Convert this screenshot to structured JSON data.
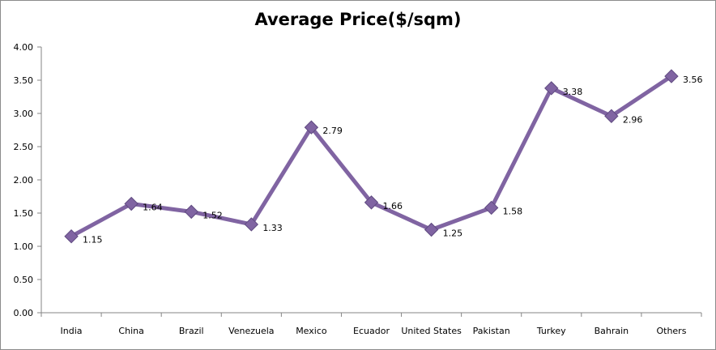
{
  "chart_data": {
    "type": "line",
    "title": "Average Price($/sqm)",
    "categories": [
      "India",
      "China",
      "Brazil",
      "Venezuela",
      "Mexico",
      "Ecuador",
      "United States",
      "Pakistan",
      "Turkey",
      "Bahrain",
      "Others"
    ],
    "series": [
      {
        "values": [
          1.15,
          1.64,
          1.52,
          1.33,
          2.79,
          1.66,
          1.25,
          1.58,
          3.38,
          2.96,
          3.56
        ]
      }
    ],
    "ylim": [
      0,
      4
    ],
    "yticks": [
      "0.00",
      "0.50",
      "1.00",
      "1.50",
      "2.00",
      "2.50",
      "3.00",
      "3.50",
      "4.00"
    ],
    "ytick_values": [
      0,
      0.5,
      1,
      1.5,
      2,
      2.5,
      3,
      3.5,
      4
    ],
    "data_labels": [
      "1.15",
      "1.64",
      "1.52",
      "1.33",
      "2.79",
      "1.66",
      "1.25",
      "1.58",
      "3.38",
      "2.96",
      "3.56"
    ],
    "grid": false,
    "marker": "diamond",
    "colors": {
      "line": "#8064a2",
      "marker": "#8064a2",
      "axis": "#868686"
    }
  }
}
